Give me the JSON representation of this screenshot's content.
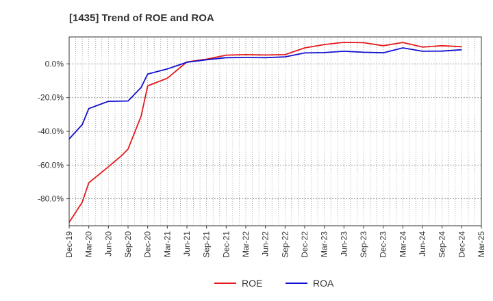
{
  "chart_data": {
    "type": "line",
    "title": "[1435]  Trend of ROE and ROA",
    "xlabel": "",
    "ylabel": "",
    "x_ticks": [
      "Dec-19",
      "Mar-20",
      "Jun-20",
      "Sep-20",
      "Dec-20",
      "Mar-21",
      "Jun-21",
      "Sep-21",
      "Dec-21",
      "Mar-22",
      "Jun-22",
      "Sep-22",
      "Dec-22",
      "Mar-23",
      "Jun-23",
      "Sep-23",
      "Dec-23",
      "Mar-24",
      "Jun-24",
      "Sep-24",
      "Dec-24",
      "Mar-25"
    ],
    "y_ticks": [
      "0.0%",
      "-20.0%",
      "-40.0%",
      "-60.0%",
      "-80.0%"
    ],
    "y_tick_values": [
      0,
      -20,
      -40,
      -60,
      -80
    ],
    "ylim": [
      -96,
      16
    ],
    "grid": true,
    "legend_position": "bottom-center",
    "series": [
      {
        "name": "ROE",
        "color": "#e31a1c",
        "points": [
          [
            "Dec-19",
            -94
          ],
          [
            "Feb-20",
            -82
          ],
          [
            "Mar-20",
            -70.5
          ],
          [
            "Jun-20",
            -61
          ],
          [
            "Aug-20",
            -54.5
          ],
          [
            "Sep-20",
            -50.5
          ],
          [
            "Nov-20",
            -31
          ],
          [
            "Dec-20",
            -13
          ],
          [
            "Mar-21",
            -8.5
          ],
          [
            "Jun-21",
            1.2
          ],
          [
            "Sep-21",
            2.8
          ],
          [
            "Dec-21",
            5.2
          ],
          [
            "Mar-22",
            5.5
          ],
          [
            "Jun-22",
            5.3
          ],
          [
            "Sep-22",
            5.5
          ],
          [
            "Dec-22",
            9.5
          ],
          [
            "Mar-23",
            11.5
          ],
          [
            "Jun-23",
            12.8
          ],
          [
            "Sep-23",
            12.6
          ],
          [
            "Dec-23",
            10.8
          ],
          [
            "Mar-24",
            12.7
          ],
          [
            "Jun-24",
            10
          ],
          [
            "Sep-24",
            10.8
          ],
          [
            "Dec-24",
            10.2
          ]
        ]
      },
      {
        "name": "ROA",
        "color": "#1010d0",
        "points": [
          [
            "Dec-19",
            -44.5
          ],
          [
            "Feb-20",
            -36
          ],
          [
            "Mar-20",
            -26.5
          ],
          [
            "Jun-20",
            -22.2
          ],
          [
            "Sep-20",
            -22
          ],
          [
            "Nov-20",
            -14
          ],
          [
            "Dec-20",
            -6
          ],
          [
            "Mar-21",
            -3
          ],
          [
            "Jun-21",
            1
          ],
          [
            "Sep-21",
            2.5
          ],
          [
            "Dec-21",
            3.7
          ],
          [
            "Mar-22",
            3.8
          ],
          [
            "Jun-22",
            3.7
          ],
          [
            "Sep-22",
            4.2
          ],
          [
            "Dec-22",
            6.5
          ],
          [
            "Mar-23",
            6.7
          ],
          [
            "Jun-23",
            7.5
          ],
          [
            "Sep-23",
            6.9
          ],
          [
            "Dec-23",
            6.6
          ],
          [
            "Mar-24",
            9.5
          ],
          [
            "Jun-24",
            7.5
          ],
          [
            "Sep-24",
            7.6
          ],
          [
            "Dec-24",
            8.4
          ]
        ]
      }
    ]
  }
}
